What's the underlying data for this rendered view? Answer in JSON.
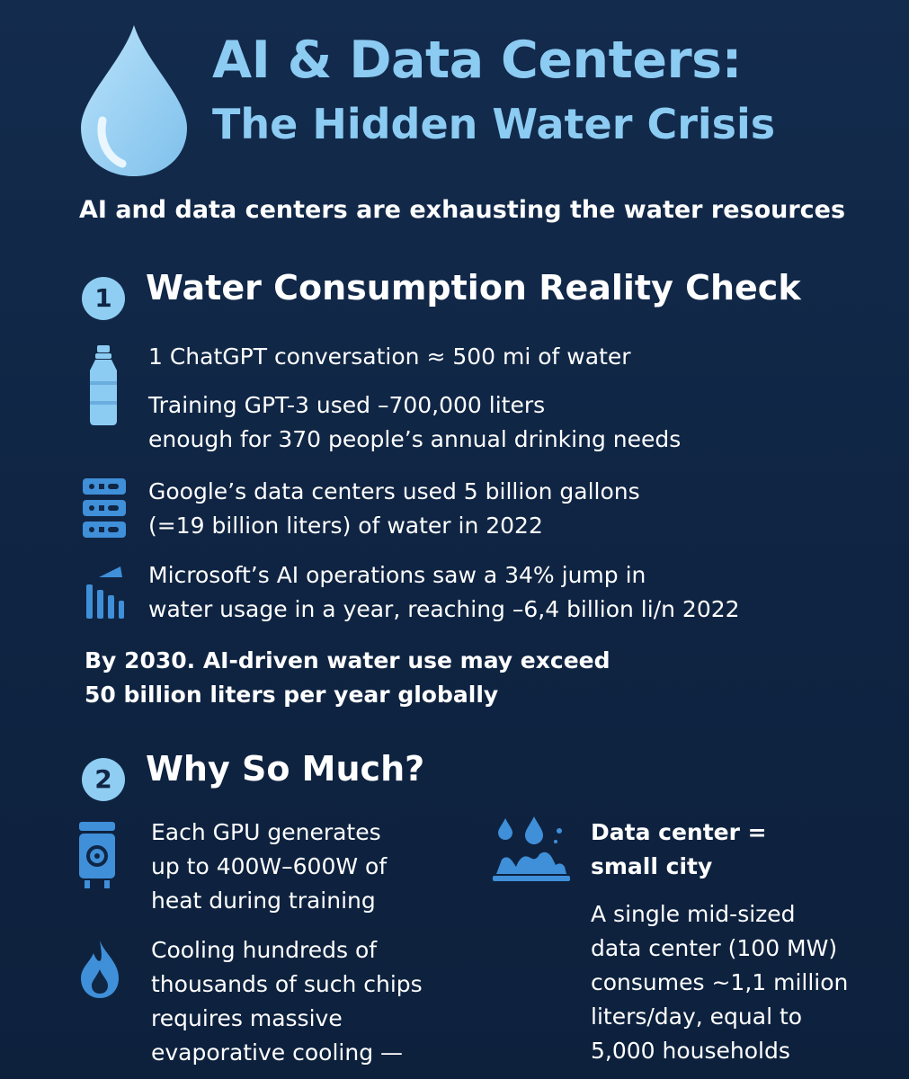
{
  "header": {
    "title_line1": "AI & Data Centers:",
    "title_line2": "The Hidden Water Crisis",
    "subtitle": "AI and data centers are exhausting the water resources"
  },
  "section1": {
    "number": "1",
    "title": "Water Consumption Reality Check",
    "item1_line1": "1 ChatGPT conversation  ≈ 500 mi of water",
    "item2_line1": "Training GPT-3 used –700,000 liters",
    "item2_line2": "enough for 370 people’s annual drinking needs",
    "item3_line1": "Google’s data centers used 5 billion gallons",
    "item3_line2": "(=19 billion liters) of water in 2022",
    "item4_line1": "Microsoft’s AI operations saw a 34% jump in",
    "item4_line2": "water usage in a year, reaching –6,4 billion li/n 2022",
    "projection_line1": "By 2030. AI-driven water use may exceed",
    "projection_line2": "50 billion liters per year globally"
  },
  "section2": {
    "number": "2",
    "title": "Why So Much?",
    "gpu_line1": "Each GPU generates",
    "gpu_line2": "up to 400W–600W of",
    "gpu_line3": "heat during training",
    "cool_line1": "Cooling hundreds of",
    "cool_line2": "thousands of such chips",
    "cool_line3": "requires massive",
    "cool_line4": "evaporative cooling —",
    "city_line1": "Data center =",
    "city_line2": "small city",
    "dc_line1": "A single mid-sized",
    "dc_line2": "data center (100 MW)",
    "dc_line3": "consumes ~1,1 million",
    "dc_line4": "liters/day, equal to",
    "dc_line5": "5,000 households"
  },
  "icons": {
    "drop": "water-drop-icon",
    "bottle": "water-bottle-icon",
    "server": "server-rack-icon",
    "chart": "bar-chart-icon",
    "gpu": "gpu-unit-icon",
    "flame": "flame-icon",
    "city": "water-city-icon"
  },
  "colors": {
    "background": "#0f2645",
    "accent": "#8ccbf2",
    "icon": "#3f8fd9",
    "text": "#ffffff"
  }
}
